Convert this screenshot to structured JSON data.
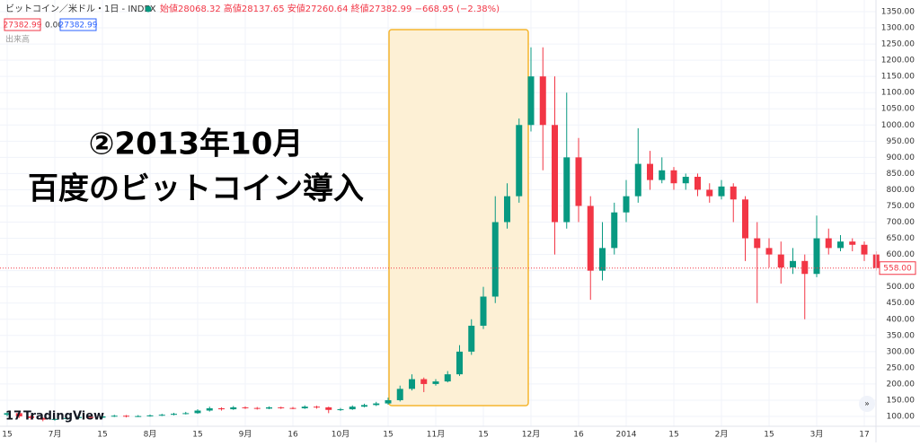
{
  "header": {
    "symbol": "ビットコイン／米ドル・1日 - INDEX",
    "ohlc": "始値28068.32 高値28137.65 安値27260.64 終値27382.99 −668.95 (−2.38%)",
    "box1": "27382.99",
    "box2": "0.00",
    "box3": "27382.99",
    "volume": "出来高",
    "logo": "TradingView"
  },
  "annotation": {
    "line1": "②2013年10月",
    "line2": "百度のビットコイン導入"
  },
  "chart_data": {
    "type": "candlestick",
    "categories": [
      "15",
      null,
      null,
      null,
      "7月",
      null,
      null,
      null,
      "15",
      null,
      null,
      null,
      "8月",
      null,
      null,
      null,
      "15",
      null,
      null,
      null,
      "9月",
      null,
      null,
      null,
      "16",
      null,
      null,
      null,
      "10月",
      null,
      null,
      null,
      "15",
      null,
      null,
      null,
      "11月",
      null,
      null,
      null,
      "15",
      null,
      null,
      null,
      "12月",
      null,
      null,
      null,
      "16",
      null,
      null,
      null,
      "2014",
      null,
      null,
      null,
      "15",
      null,
      null,
      null,
      "2月",
      null,
      null,
      null,
      "15",
      null,
      null,
      null,
      "3月",
      null,
      null,
      null,
      "17",
      null
    ],
    "open": [
      105,
      110,
      100,
      95,
      90,
      92,
      95,
      98,
      96,
      100,
      102,
      100,
      101,
      103,
      105,
      108,
      110,
      118,
      125,
      122,
      128,
      126,
      124,
      128,
      126,
      125,
      130,
      128,
      120,
      122,
      130,
      135,
      140,
      150,
      185,
      215,
      200,
      208,
      230,
      300,
      380,
      470,
      700,
      780,
      1000,
      1150,
      1000,
      700,
      900,
      750,
      550,
      620,
      730,
      780,
      880,
      830,
      860,
      820,
      840,
      800,
      780,
      810,
      770,
      650,
      620,
      600,
      560,
      580,
      540,
      650,
      620,
      640,
      630,
      600
    ],
    "high": [
      115,
      112,
      103,
      97,
      96,
      98,
      101,
      100,
      103,
      105,
      104,
      104,
      106,
      108,
      111,
      114,
      122,
      130,
      128,
      132,
      131,
      129,
      131,
      130,
      129,
      134,
      133,
      130,
      126,
      134,
      139,
      145,
      158,
      195,
      230,
      220,
      215,
      240,
      320,
      400,
      500,
      780,
      820,
      1020,
      1240,
      1240,
      1150,
      1100,
      960,
      780,
      700,
      760,
      830,
      990,
      920,
      900,
      870,
      850,
      850,
      820,
      830,
      820,
      780,
      700,
      650,
      640,
      620,
      600,
      720,
      680,
      660,
      650,
      640,
      610
    ],
    "low": [
      100,
      95,
      90,
      85,
      87,
      90,
      93,
      93,
      94,
      98,
      97,
      98,
      99,
      101,
      103,
      106,
      108,
      115,
      118,
      120,
      123,
      121,
      122,
      123,
      122,
      123,
      124,
      110,
      117,
      120,
      128,
      132,
      136,
      146,
      180,
      175,
      195,
      205,
      225,
      290,
      370,
      450,
      680,
      760,
      980,
      860,
      600,
      680,
      700,
      460,
      520,
      600,
      700,
      760,
      800,
      820,
      800,
      800,
      780,
      760,
      770,
      700,
      580,
      450,
      560,
      510,
      540,
      400,
      530,
      600,
      610,
      610,
      580,
      550
    ],
    "close": [
      110,
      100,
      95,
      90,
      92,
      95,
      98,
      96,
      100,
      102,
      100,
      101,
      103,
      105,
      108,
      110,
      118,
      125,
      122,
      128,
      126,
      124,
      128,
      126,
      125,
      130,
      128,
      120,
      122,
      130,
      135,
      140,
      150,
      185,
      215,
      200,
      208,
      230,
      300,
      380,
      470,
      700,
      780,
      1000,
      1150,
      1000,
      700,
      900,
      750,
      550,
      620,
      730,
      780,
      880,
      830,
      860,
      820,
      840,
      800,
      780,
      810,
      770,
      650,
      620,
      600,
      560,
      580,
      540,
      650,
      620,
      640,
      630,
      600,
      558
    ],
    "up_color": "#089981",
    "down_color": "#f23645",
    "last_price": {
      "value": 558,
      "label": "558.00"
    },
    "ylim": [
      100,
      1350
    ],
    "yticks": [
      {
        "value": 100,
        "label": "100.00"
      },
      {
        "value": 150,
        "label": "150.00"
      },
      {
        "value": 200,
        "label": "200.00"
      },
      {
        "value": 250,
        "label": "250.00"
      },
      {
        "value": 300,
        "label": "300.00"
      },
      {
        "value": 350,
        "label": "350.00"
      },
      {
        "value": 400,
        "label": "400.00"
      },
      {
        "value": 450,
        "label": "450.00"
      },
      {
        "value": 500,
        "label": "500.00"
      },
      {
        "value": 550,
        "label": "550.00"
      },
      {
        "value": 600,
        "label": "600.00"
      },
      {
        "value": 650,
        "label": "650.00"
      },
      {
        "value": 700,
        "label": "700.00"
      },
      {
        "value": 750,
        "label": "750.00"
      },
      {
        "value": 800,
        "label": "800.00"
      },
      {
        "value": 850,
        "label": "850.00"
      },
      {
        "value": 900,
        "label": "900.00"
      },
      {
        "value": 950,
        "label": "950.00"
      },
      {
        "value": 1000,
        "label": "1000.00"
      },
      {
        "value": 1050,
        "label": "1050.00"
      },
      {
        "value": 1100,
        "label": "1100.00"
      },
      {
        "value": 1150,
        "label": "1150.00"
      },
      {
        "value": 1200,
        "label": "1200.00"
      },
      {
        "value": 1250,
        "label": "1250.00"
      },
      {
        "value": 1300,
        "label": "1300.00"
      },
      {
        "value": 1350,
        "label": "1350.00"
      }
    ],
    "grid": true
  }
}
